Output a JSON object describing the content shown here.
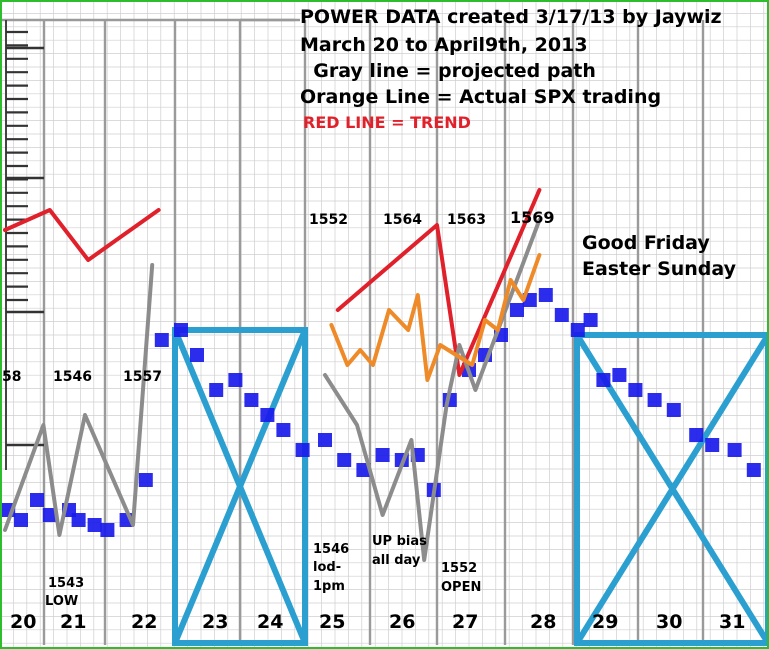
{
  "chart_data": {
    "type": "line",
    "title_lines": [
      "POWER DATA created 3/17/13 by Jaywiz",
      "March 20 to April9th, 2013",
      "  Gray line = projected path",
      "Orange Line = Actual SPX trading"
    ],
    "trend_label": "RED LINE = TREND",
    "holiday_lines": [
      "Good Friday",
      "Easter Sunday"
    ],
    "days": [
      "20",
      "21",
      "22",
      "23",
      "24",
      "25",
      "26",
      "27",
      "28",
      "29",
      "30",
      "31"
    ],
    "crossed_days": [
      "23",
      "24",
      "29",
      "30",
      "31"
    ],
    "value_labels": [
      {
        "text": "58",
        "size": "normal"
      },
      {
        "text": "1546",
        "size": "normal"
      },
      {
        "text": "1557",
        "size": "normal"
      },
      {
        "text": "1552",
        "size": "normal"
      },
      {
        "text": "1564",
        "size": "normal"
      },
      {
        "text": "1563",
        "size": "normal"
      },
      {
        "text": "1569",
        "size": "big"
      }
    ],
    "notes": [
      {
        "lines": [
          "1543",
          "LOW"
        ]
      },
      {
        "lines": [
          "1546",
          "lod-",
          "1pm"
        ]
      },
      {
        "lines": [
          "UP bias",
          "all day"
        ]
      },
      {
        "lines": [
          "1552",
          "OPEN"
        ]
      }
    ],
    "series": [
      {
        "name": "RED LINE = TREND",
        "color": "#e0202a",
        "segments": [
          [
            [
              0.0,
              0.62
            ],
            [
              0.7,
              0.66
            ],
            [
              1.3,
              0.56
            ],
            [
              2.4,
              0.66
            ]
          ],
          [
            [
              5.2,
              0.46
            ],
            [
              6.75,
              0.63
            ],
            [
              7.1,
              0.33
            ],
            [
              8.35,
              0.7
            ]
          ]
        ]
      },
      {
        "name": "Gray line = projected path",
        "color": "#8c8c8c",
        "segments": [
          [
            [
              0.0,
              0.02
            ],
            [
              0.6,
              0.23
            ],
            [
              0.85,
              0.01
            ],
            [
              1.25,
              0.25
            ],
            [
              2.0,
              0.03
            ],
            [
              2.3,
              0.55
            ]
          ],
          [
            [
              5.0,
              0.33
            ],
            [
              5.5,
              0.23
            ],
            [
              5.9,
              0.05
            ],
            [
              6.35,
              0.2
            ],
            [
              6.55,
              -0.04
            ],
            [
              6.9,
              0.27
            ],
            [
              7.1,
              0.39
            ],
            [
              7.35,
              0.3
            ],
            [
              8.35,
              0.64
            ]
          ]
        ]
      },
      {
        "name": "Orange Line = Actual SPX trading",
        "color": "#ee8a28",
        "segments": [
          [
            [
              5.1,
              0.43
            ],
            [
              5.35,
              0.35
            ],
            [
              5.55,
              0.38
            ],
            [
              5.75,
              0.35
            ],
            [
              6.0,
              0.46
            ],
            [
              6.3,
              0.42
            ],
            [
              6.45,
              0.49
            ],
            [
              6.6,
              0.32
            ],
            [
              6.8,
              0.39
            ],
            [
              7.3,
              0.35
            ],
            [
              7.5,
              0.44
            ],
            [
              7.7,
              0.42
            ],
            [
              7.9,
              0.52
            ],
            [
              8.1,
              0.48
            ],
            [
              8.35,
              0.57
            ]
          ]
        ]
      },
      {
        "name": "power data",
        "color": "#1a1aeb",
        "points": [
          [
            0.05,
            0.06
          ],
          [
            0.25,
            0.04
          ],
          [
            0.5,
            0.08
          ],
          [
            0.7,
            0.05
          ],
          [
            1.0,
            0.06
          ],
          [
            1.15,
            0.04
          ],
          [
            1.4,
            0.03
          ],
          [
            1.6,
            0.02
          ],
          [
            1.9,
            0.04
          ],
          [
            2.2,
            0.12
          ],
          [
            2.45,
            0.4
          ],
          [
            2.75,
            0.42
          ],
          [
            3.0,
            0.37
          ],
          [
            3.3,
            0.3
          ],
          [
            3.6,
            0.32
          ],
          [
            3.85,
            0.28
          ],
          [
            4.1,
            0.25
          ],
          [
            4.35,
            0.22
          ],
          [
            4.65,
            0.18
          ],
          [
            5.0,
            0.2
          ],
          [
            5.3,
            0.16
          ],
          [
            5.6,
            0.14
          ],
          [
            5.9,
            0.17
          ],
          [
            6.2,
            0.16
          ],
          [
            6.45,
            0.17
          ],
          [
            6.7,
            0.1
          ],
          [
            6.95,
            0.28
          ],
          [
            7.25,
            0.34
          ],
          [
            7.5,
            0.37
          ],
          [
            7.75,
            0.41
          ],
          [
            8.0,
            0.46
          ],
          [
            8.2,
            0.48
          ],
          [
            8.45,
            0.49
          ],
          [
            8.7,
            0.45
          ],
          [
            8.95,
            0.42
          ],
          [
            9.15,
            0.44
          ],
          [
            9.35,
            0.32
          ],
          [
            9.6,
            0.33
          ],
          [
            9.85,
            0.3
          ],
          [
            10.15,
            0.28
          ],
          [
            10.45,
            0.26
          ],
          [
            10.8,
            0.21
          ],
          [
            11.05,
            0.19
          ],
          [
            11.4,
            0.18
          ],
          [
            11.7,
            0.14
          ]
        ]
      }
    ],
    "grid": true,
    "legend": "top"
  }
}
